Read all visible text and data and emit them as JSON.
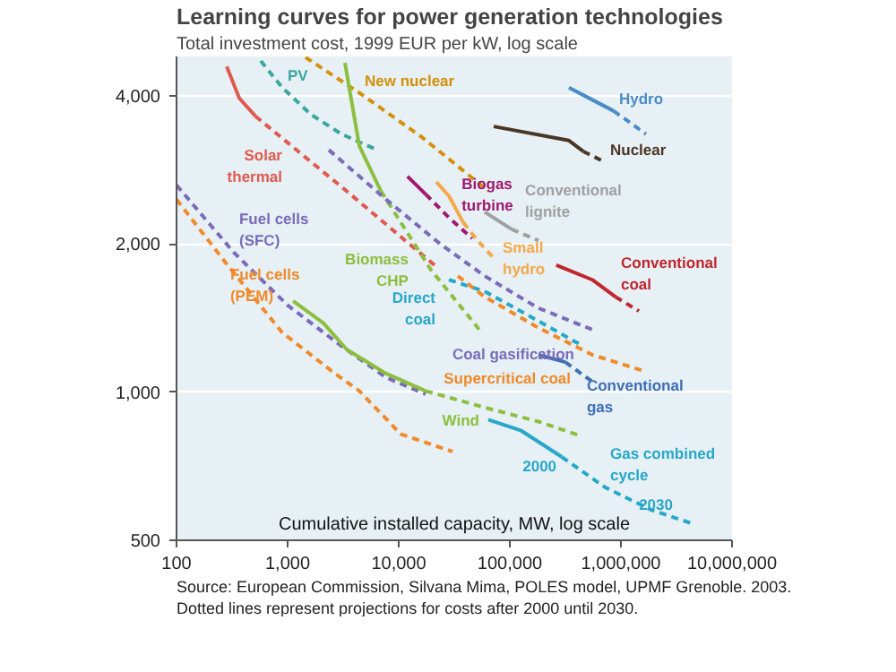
{
  "chart_data": {
    "type": "line",
    "title": "Learning curves for power generation technologies",
    "subtitle": "Total investment cost, 1999 EUR per kW, log scale",
    "xlabel": "Cumulative installed capacity, MW, log scale",
    "log": "xy",
    "grid": "y",
    "marker": "none",
    "xlim": [
      100,
      10000000
    ],
    "ylim": [
      500,
      4800
    ],
    "xticks": [
      100,
      {
        "value": 1000,
        "label": "1,000"
      },
      {
        "value": 10000,
        "label": "10,000"
      },
      {
        "value": 100000,
        "label": "100,000"
      },
      {
        "value": 1000000,
        "label": "1,000,000"
      },
      {
        "value": 10000000,
        "label": "10,000,000"
      }
    ],
    "yticks": [
      500,
      {
        "value": 1000,
        "label": "1,000"
      },
      {
        "value": 2000,
        "label": "2,000"
      },
      {
        "value": 4000,
        "label": "4,000"
      }
    ],
    "series": [
      {
        "color": "#e05a4f",
        "line_style": "solid",
        "x": [
          283,
          367,
          513
        ],
        "values": [
          4580,
          3950,
          3630
        ]
      },
      {
        "color": "#e05a4f",
        "line_style": "dashed",
        "x": [
          513,
          3050,
          21000
        ],
        "values": [
          3630,
          2610,
          1810
        ]
      },
      {
        "color": "#3aa6a0",
        "line_style": "dashed",
        "x": [
          573,
          895,
          1620,
          3050,
          6400
        ],
        "values": [
          4700,
          4150,
          3660,
          3340,
          3100
        ]
      },
      {
        "color": "#d4900a",
        "line_style": "dashed",
        "x": [
          1450,
          4420,
          16200,
          64000
        ],
        "values": [
          4780,
          4050,
          3290,
          2560
        ]
      },
      {
        "color": "#8cbf3f",
        "line_style": "solid",
        "x": [
          3280,
          4420,
          6900
        ],
        "values": [
          4660,
          3160,
          2560
        ]
      },
      {
        "color": "#8cbf3f",
        "line_style": "dashed",
        "x": [
          6900,
          19500,
          53000
        ],
        "values": [
          2560,
          1770,
          1340
        ]
      },
      {
        "color": "#a0196e",
        "line_style": "solid",
        "x": [
          12000,
          17500
        ],
        "values": [
          2740,
          2520
        ]
      },
      {
        "color": "#a0196e",
        "line_style": "dashed",
        "x": [
          17500,
          28300,
          45800
        ],
        "values": [
          2520,
          2260,
          2050
        ]
      },
      {
        "color": "#f5a94a",
        "line_style": "solid",
        "x": [
          21800,
          28300,
          38100
        ],
        "values": [
          2670,
          2500,
          2210
        ]
      },
      {
        "color": "#f5a94a",
        "line_style": "dashed",
        "x": [
          38100,
          51300,
          71600
        ],
        "values": [
          2210,
          2030,
          1870
        ]
      },
      {
        "color": "#a0a0a0",
        "line_style": "solid",
        "x": [
          59400,
          104000
        ],
        "values": [
          2320,
          2140
        ]
      },
      {
        "color": "#a0a0a0",
        "line_style": "dashed",
        "x": [
          104000,
          181000
        ],
        "values": [
          2140,
          2030
        ]
      },
      {
        "color": "#4a8cc8",
        "line_style": "solid",
        "x": [
          340000,
          552000,
          861000
        ],
        "values": [
          4150,
          3920,
          3720
        ]
      },
      {
        "color": "#4a8cc8",
        "line_style": "dashed",
        "x": [
          861000,
          1680000
        ],
        "values": [
          3720,
          3340
        ]
      },
      {
        "color": "#4a3626",
        "line_style": "solid",
        "x": [
          71600,
          340000,
          458000
        ],
        "values": [
          3460,
          3240,
          3080
        ]
      },
      {
        "color": "#4a3626",
        "line_style": "dashed",
        "x": [
          458000,
          716000
        ],
        "values": [
          3080,
          2930
        ]
      },
      {
        "color": "#c0262d",
        "line_style": "solid",
        "x": [
          262000,
          552000,
          895000
        ],
        "values": [
          1810,
          1690,
          1560
        ]
      },
      {
        "color": "#c0262d",
        "line_style": "dashed",
        "x": [
          895000,
          1450000
        ],
        "values": [
          1560,
          1460
        ]
      },
      {
        "color": "#7b6bb8",
        "line_style": "dashed",
        "x": [
          2350,
          7700,
          23500,
          59400,
          181000,
          594000
        ],
        "values": [
          3100,
          2460,
          2000,
          1720,
          1480,
          1330
        ]
      },
      {
        "color": "#7b6bb8",
        "line_style": "dashed",
        "x": [
          100,
          328,
          1000,
          3050,
          7700,
          17500
        ],
        "values": [
          2630,
          1920,
          1500,
          1240,
          1070,
          990
        ]
      },
      {
        "color": "#8cbf3f",
        "line_style": "solid",
        "x": [
          1120,
          2100,
          3400,
          7700,
          17500
        ],
        "values": [
          1530,
          1380,
          1220,
          1090,
          1005
        ]
      },
      {
        "color": "#8cbf3f",
        "line_style": "dashed",
        "x": [
          17500,
          59400,
          181000,
          426000
        ],
        "values": [
          1005,
          930,
          871,
          816
        ]
      },
      {
        "color": "#f08a2a",
        "line_style": "dashed",
        "x": [
          100,
          272,
          895,
          2530,
          4420,
          10400,
          30500
        ],
        "values": [
          2460,
          1840,
          1320,
          1100,
          1005,
          822,
          757
        ]
      },
      {
        "color": "#28a8c8",
        "line_style": "dashed",
        "x": [
          28300,
          59400,
          125000,
          426000
        ],
        "values": [
          1690,
          1600,
          1460,
          1250
        ]
      },
      {
        "color": "#f08a2a",
        "line_style": "dashed",
        "x": [
          34000,
          59400,
          181000,
          552000,
          1680000
        ],
        "values": [
          1720,
          1560,
          1350,
          1190,
          1100
        ]
      },
      {
        "color": "#3f6fb5",
        "line_style": "solid",
        "x": [
          181000,
          316000
        ],
        "values": [
          1190,
          1150
        ]
      },
      {
        "color": "#3f6fb5",
        "line_style": "dashed",
        "x": [
          316000,
          552000
        ],
        "values": [
          1150,
          1050
        ]
      },
      {
        "color": "#28a8c8",
        "line_style": "solid",
        "x": [
          64000,
          125000,
          294000
        ],
        "values": [
          879,
          836,
          738
        ]
      },
      {
        "color": "#28a8c8",
        "line_style": "dashed",
        "x": [
          294000,
          716000,
          1880000,
          4580000
        ],
        "values": [
          738,
          641,
          576,
          539
        ]
      }
    ],
    "annotations": [
      {
        "text": "Hydro",
        "x": 861000,
        "y": 3720
      },
      {
        "text": "Nuclear",
        "x": 716000,
        "y": 2930
      },
      {
        "text": "New nuclear",
        "x": 4420,
        "y": 4050
      },
      {
        "text": "PV",
        "x": 895,
        "y": 4150
      },
      {
        "text": "Biogas\nturbine",
        "x": 17500,
        "y": 2520
      },
      {
        "text": "Solar\nthermal",
        "x": 1000,
        "y": 3210
      },
      {
        "text": "Conventional\nlignite",
        "x": 104000,
        "y": 2140
      },
      {
        "text": "Small\nhydro",
        "x": 71600,
        "y": 1870
      },
      {
        "text": "Conventional\ncoal",
        "x": 895000,
        "y": 1560
      },
      {
        "text": "Coal gasification",
        "x": 594000,
        "y": 1330
      },
      {
        "text": "Supercritical coal",
        "x": 552000,
        "y": 1190
      },
      {
        "text": "Fuel cells\n(SFC)",
        "x": 328,
        "y": 1920
      },
      {
        "text": "Fuel cells\n(PEM)",
        "x": 272,
        "y": 1840
      },
      {
        "text": "Direct\ncoal",
        "x": 28300,
        "y": 1690
      },
      {
        "text": "Biomass\nCHP",
        "x": 19500,
        "y": 1770
      },
      {
        "text": "Wind",
        "x": 59400,
        "y": 930
      },
      {
        "text": "Conventional\ngas",
        "x": 316000,
        "y": 1150
      },
      {
        "text": "2000",
        "x": 294000,
        "y": 738
      },
      {
        "text": "Gas combined\ncycle",
        "x": 716000,
        "y": 641
      },
      {
        "text": "2030",
        "x": 4580000,
        "y": 539
      },
      "Source: European Commission, Silvana Mima, POLES model, UPMF Grenoble. 2003. Dotted lines represent projections for costs after 2000 until 2030."
    ]
  }
}
